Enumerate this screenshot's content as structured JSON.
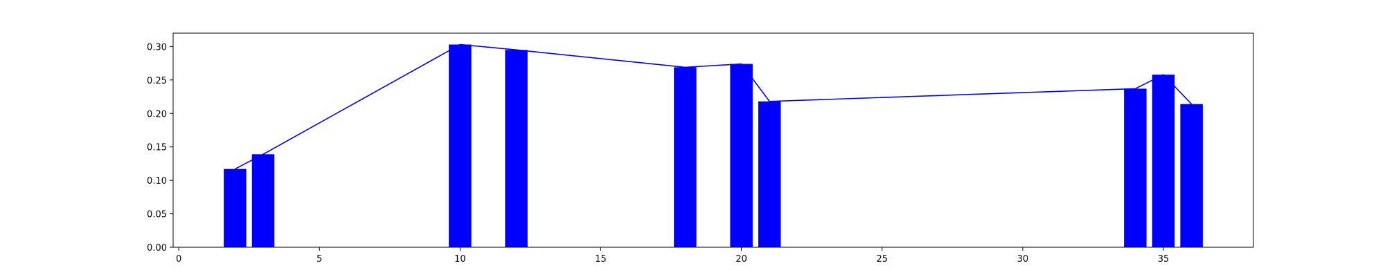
{
  "chart_data": {
    "type": "bar",
    "overlay": "line",
    "x": [
      2,
      3,
      10,
      12,
      18,
      20,
      21,
      34,
      35,
      36
    ],
    "values": [
      0.117,
      0.139,
      0.303,
      0.295,
      0.269,
      0.274,
      0.218,
      0.237,
      0.258,
      0.214
    ],
    "bar_width": 0.8,
    "title": "",
    "xlabel": "",
    "ylabel": "",
    "xlim": [
      -0.2,
      38.2
    ],
    "ylim": [
      0,
      0.32
    ],
    "xticks": [
      0,
      5,
      10,
      15,
      20,
      25,
      30,
      35
    ],
    "yticks": [
      0.0,
      0.05,
      0.1,
      0.15,
      0.2,
      0.25,
      0.3
    ],
    "ytick_labels": [
      "0.00",
      "0.05",
      "0.10",
      "0.15",
      "0.20",
      "0.25",
      "0.30"
    ],
    "grid": false,
    "legend": "none",
    "bar_color": "#0000ff",
    "line_color": "#0000ff"
  }
}
